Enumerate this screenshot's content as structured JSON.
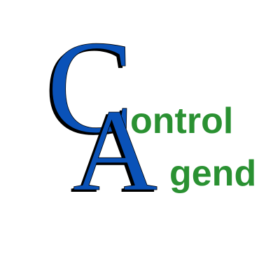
{
  "logo": {
    "letter_c": "C",
    "letter_a": "A",
    "word_top": "ontrol",
    "word_bottom": "gend",
    "colors": {
      "letters": "#0a52b8",
      "shadow": "#000000",
      "words": "#2a9132",
      "background": "#ffffff"
    }
  }
}
